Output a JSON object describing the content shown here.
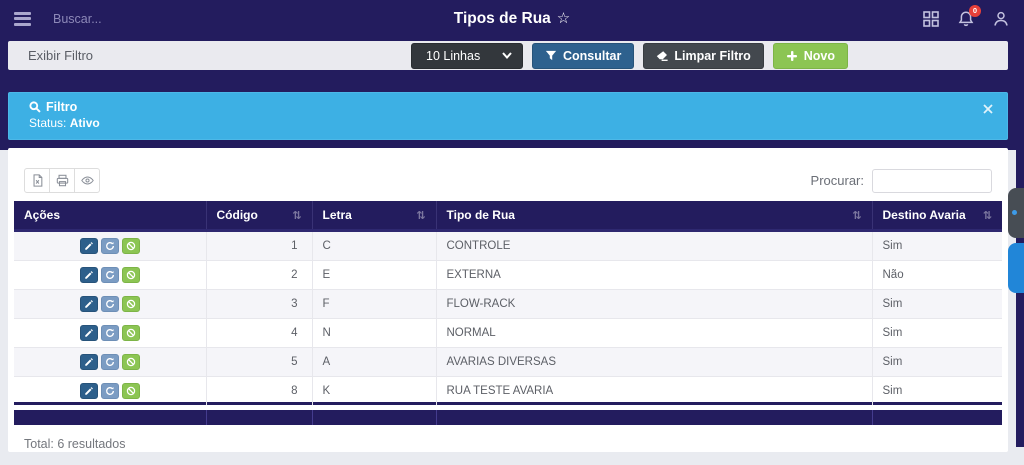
{
  "topbar": {
    "search_placeholder": "Buscar...",
    "title": "Tipos de Rua",
    "notification_badge": "0"
  },
  "filterbar": {
    "label": "Exibir Filtro",
    "rows_select_value": "10 Linhas",
    "consultar_label": "Consultar",
    "limpar_label": "Limpar Filtro",
    "novo_label": "Novo"
  },
  "banner": {
    "title": "Filtro",
    "status_label": "Status:",
    "status_value": "Ativo"
  },
  "table": {
    "search_label": "Procurar:",
    "columns": {
      "acoes": "Ações",
      "codigo": "Código",
      "letra": "Letra",
      "tipo": "Tipo de Rua",
      "destino": "Destino Avaria"
    },
    "rows": [
      {
        "codigo": "1",
        "letra": "C",
        "tipo": "CONTROLE",
        "destino": "Sim"
      },
      {
        "codigo": "2",
        "letra": "E",
        "tipo": "EXTERNA",
        "destino": "Não"
      },
      {
        "codigo": "3",
        "letra": "F",
        "tipo": "FLOW-RACK",
        "destino": "Sim"
      },
      {
        "codigo": "4",
        "letra": "N",
        "tipo": "NORMAL",
        "destino": "Sim"
      },
      {
        "codigo": "5",
        "letra": "A",
        "tipo": "AVARIAS DIVERSAS",
        "destino": "Sim"
      },
      {
        "codigo": "8",
        "letra": "K",
        "tipo": "RUA TESTE AVARIA",
        "destino": "Sim"
      }
    ],
    "total_text": "Total: 6 resultados"
  },
  "icons": {
    "topbar": [
      "menu-icon",
      "apps-grid-icon",
      "bell-icon",
      "user-icon",
      "favorite-star-icon"
    ],
    "filterbar": [
      "chevron-down-icon",
      "funnel-icon",
      "eraser-icon",
      "plus-icon"
    ],
    "banner": [
      "search-icon",
      "close-icon"
    ],
    "toolbar": [
      "excel-export-icon",
      "printer-icon",
      "eye-icon"
    ],
    "row_actions": [
      "pencil-icon",
      "sync-icon",
      "ban-icon"
    ]
  },
  "colors": {
    "navy": "#231c5e",
    "banner_blue": "#3db0e4",
    "consultar_blue": "#2e618e",
    "limpar_gray": "#43484e",
    "novo_green": "#8cc553",
    "badge_red": "#e8403a",
    "row_alt": "#f5f5f9"
  }
}
